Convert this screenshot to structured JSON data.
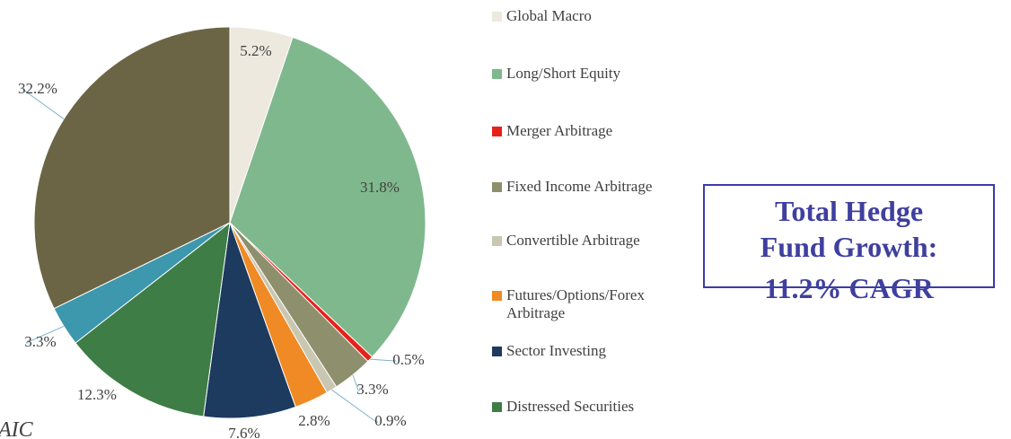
{
  "chart_data": {
    "type": "pie",
    "categories": [
      "Global Macro",
      "Long/Short Equity",
      "Merger Arbitrage",
      "Fixed Income Arbitrage",
      "Convertible Arbitrage",
      "Futures/Options/Forex Arbitrage",
      "Sector Investing",
      "Distressed Securities",
      null,
      null
    ],
    "values": [
      5.2,
      31.8,
      0.5,
      3.3,
      0.9,
      2.8,
      7.6,
      12.3,
      3.3,
      32.2
    ],
    "value_labels": [
      "5.2%",
      "31.8%",
      "0.5%",
      "3.3%",
      "0.9%",
      "2.8%",
      "7.6%",
      "12.3%",
      "3.3%",
      "32.2%"
    ],
    "colors": [
      "#ede9df",
      "#80b88e",
      "#e8201a",
      "#8e8f6c",
      "#c9c6b2",
      "#f08a24",
      "#1d3a5f",
      "#3e7d45",
      "#3d97ad",
      "#6b6545"
    ],
    "annotation": [
      "Total Hedge",
      "Fund Growth:",
      "11.2% CAGR"
    ],
    "source": "AIC"
  }
}
